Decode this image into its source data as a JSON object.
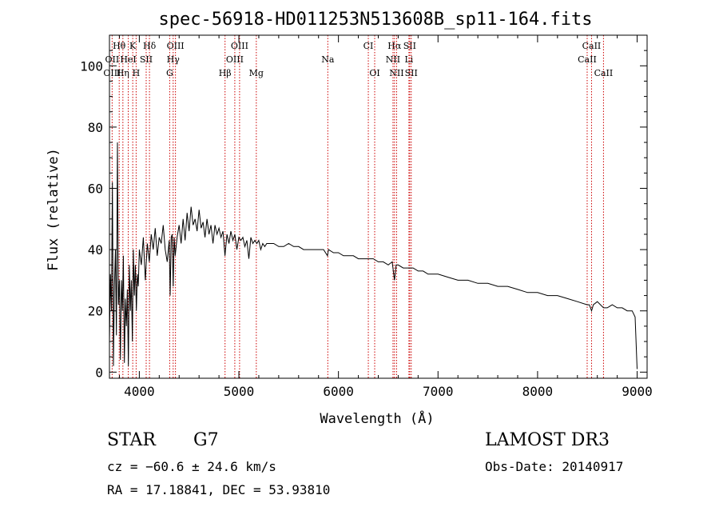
{
  "chart_data": {
    "type": "line",
    "title": "spec-56918-HD011253N513608B_sp11-164.fits",
    "xlabel": "Wavelength (Å)",
    "ylabel": "Flux (relative)",
    "xlim": [
      3700,
      9100
    ],
    "ylim": [
      -2,
      110
    ],
    "xticks": [
      4000,
      5000,
      6000,
      7000,
      8000,
      9000
    ],
    "yticks": [
      0,
      20,
      40,
      60,
      80,
      100
    ],
    "grid": false,
    "series": [
      {
        "name": "flux",
        "x": [
          3700,
          3710,
          3720,
          3730,
          3740,
          3750,
          3760,
          3770,
          3780,
          3790,
          3800,
          3810,
          3820,
          3830,
          3840,
          3850,
          3860,
          3870,
          3880,
          3890,
          3900,
          3910,
          3920,
          3930,
          3940,
          3950,
          3960,
          3970,
          3980,
          3990,
          4000,
          4020,
          4040,
          4060,
          4080,
          4100,
          4120,
          4140,
          4160,
          4180,
          4200,
          4220,
          4240,
          4260,
          4280,
          4300,
          4310,
          4320,
          4330,
          4340,
          4350,
          4360,
          4380,
          4400,
          4420,
          4440,
          4460,
          4480,
          4500,
          4520,
          4540,
          4560,
          4580,
          4600,
          4620,
          4640,
          4660,
          4680,
          4700,
          4720,
          4740,
          4760,
          4780,
          4800,
          4820,
          4840,
          4860,
          4880,
          4900,
          4920,
          4940,
          4960,
          4980,
          5000,
          5020,
          5040,
          5060,
          5080,
          5100,
          5120,
          5140,
          5160,
          5180,
          5200,
          5220,
          5240,
          5260,
          5280,
          5300,
          5350,
          5400,
          5450,
          5500,
          5550,
          5600,
          5650,
          5700,
          5750,
          5800,
          5850,
          5890,
          5900,
          5950,
          6000,
          6050,
          6100,
          6150,
          6200,
          6250,
          6300,
          6350,
          6400,
          6450,
          6500,
          6540,
          6563,
          6580,
          6600,
          6650,
          6700,
          6750,
          6800,
          6850,
          6900,
          6950,
          7000,
          7100,
          7200,
          7300,
          7400,
          7500,
          7600,
          7700,
          7800,
          7900,
          8000,
          8100,
          8200,
          8300,
          8400,
          8498,
          8520,
          8542,
          8560,
          8600,
          8662,
          8700,
          8750,
          8800,
          8850,
          8900,
          8950,
          8980,
          9000
        ],
        "values": [
          10,
          32,
          20,
          62,
          2,
          28,
          40,
          12,
          75,
          22,
          30,
          4,
          30,
          20,
          38,
          3,
          24,
          15,
          27,
          2,
          35,
          20,
          30,
          10,
          40,
          25,
          35,
          20,
          32,
          28,
          40,
          35,
          44,
          30,
          42,
          36,
          45,
          40,
          47,
          38,
          44,
          42,
          48,
          40,
          36,
          43,
          25,
          44,
          45,
          28,
          44,
          38,
          44,
          48,
          42,
          50,
          43,
          52,
          46,
          54,
          48,
          50,
          46,
          53,
          47,
          49,
          44,
          50,
          45,
          48,
          42,
          48,
          45,
          47,
          44,
          46,
          38,
          45,
          42,
          46,
          43,
          45,
          40,
          44,
          43,
          44,
          41,
          43,
          37,
          44,
          42,
          43,
          42,
          43,
          40,
          42,
          41,
          42,
          42,
          42,
          41,
          41,
          42,
          41,
          41,
          40,
          40,
          40,
          40,
          40,
          38,
          40,
          39,
          39,
          38,
          38,
          38,
          37,
          37,
          37,
          37,
          36,
          36,
          35,
          36,
          30,
          35,
          35,
          34,
          34,
          34,
          33,
          33,
          32,
          32,
          32,
          31,
          30,
          30,
          29,
          29,
          28,
          28,
          27,
          26,
          26,
          25,
          25,
          24,
          23,
          22,
          22,
          20,
          22,
          23,
          21,
          21,
          22,
          21,
          21,
          20,
          20,
          18,
          1
        ]
      }
    ],
    "line_markers": [
      {
        "label": "Hθ",
        "x": 3798,
        "row": 0
      },
      {
        "label": "K",
        "x": 3934,
        "row": 0
      },
      {
        "label": "Hδ",
        "x": 4102,
        "row": 0
      },
      {
        "label": "OIII",
        "x": 4363,
        "row": 0
      },
      {
        "label": "OIII",
        "x": 5007,
        "row": 0
      },
      {
        "label": "CI",
        "x": 6300,
        "row": 0
      },
      {
        "label": "Hα",
        "x": 6563,
        "row": 0
      },
      {
        "label": "SII",
        "x": 6716,
        "row": 0
      },
      {
        "label": "CaII",
        "x": 8542,
        "row": 0
      },
      {
        "label": "OII",
        "x": 3727,
        "row": 1
      },
      {
        "label": "HeI",
        "x": 3889,
        "row": 1
      },
      {
        "label": "SII",
        "x": 4069,
        "row": 1
      },
      {
        "label": "Hγ",
        "x": 4340,
        "row": 1
      },
      {
        "label": "OIII",
        "x": 4959,
        "row": 1
      },
      {
        "label": "Na",
        "x": 5893,
        "row": 1
      },
      {
        "label": "NII",
        "x": 6548,
        "row": 1
      },
      {
        "label": "Li",
        "x": 6708,
        "row": 1
      },
      {
        "label": "CaII",
        "x": 8498,
        "row": 1
      },
      {
        "label": "OIII",
        "x": 3727,
        "row": 2
      },
      {
        "label": "Hη",
        "x": 3835,
        "row": 2
      },
      {
        "label": "H",
        "x": 3968,
        "row": 2
      },
      {
        "label": "G",
        "x": 4305,
        "row": 2
      },
      {
        "label": "Hβ",
        "x": 4861,
        "row": 2
      },
      {
        "label": "Mg",
        "x": 5175,
        "row": 2
      },
      {
        "label": "OI",
        "x": 6364,
        "row": 2
      },
      {
        "label": "NII",
        "x": 6584,
        "row": 2
      },
      {
        "label": "SII",
        "x": 6731,
        "row": 2
      },
      {
        "label": "CaII",
        "x": 8662,
        "row": 2
      }
    ],
    "marker_color": "#cc0000",
    "line_color": "#000000"
  },
  "info": {
    "class": "STAR",
    "subclass": "G7",
    "survey": "LAMOST DR3",
    "cz": "cz = −60.6 ± 24.6 km/s",
    "obs_date": "Obs-Date: 20140917",
    "radec": "RA =  17.18841, DEC =  53.93810"
  }
}
